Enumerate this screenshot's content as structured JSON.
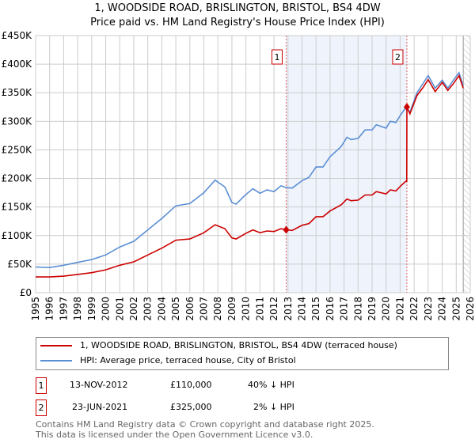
{
  "chart_data": {
    "type": "line",
    "title": "1, WOODSIDE ROAD, BRISLINGTON, BRISTOL, BS4 4DW",
    "subtitle": "Price paid vs. HM Land Registry's House Price Index (HPI)",
    "xlim": [
      1995,
      2026
    ],
    "ylim": [
      0,
      450000
    ],
    "yticks": [
      {
        "v": 0,
        "label": "£0"
      },
      {
        "v": 50000,
        "label": "£50K"
      },
      {
        "v": 100000,
        "label": "£100K"
      },
      {
        "v": 150000,
        "label": "£150K"
      },
      {
        "v": 200000,
        "label": "£200K"
      },
      {
        "v": 250000,
        "label": "£250K"
      },
      {
        "v": 300000,
        "label": "£300K"
      },
      {
        "v": 350000,
        "label": "£350K"
      },
      {
        "v": 400000,
        "label": "£400K"
      },
      {
        "v": 450000,
        "label": "£450K"
      }
    ],
    "xticks": [
      "1995",
      "1996",
      "1997",
      "1998",
      "1999",
      "2000",
      "2001",
      "2002",
      "2003",
      "2004",
      "2005",
      "2006",
      "2007",
      "2008",
      "2009",
      "2010",
      "2011",
      "2012",
      "2013",
      "2014",
      "2015",
      "2016",
      "2017",
      "2018",
      "2019",
      "2020",
      "2021",
      "2022",
      "2023",
      "2024",
      "2025",
      "2026"
    ],
    "grid": true,
    "series": [
      {
        "name": "1, WOODSIDE ROAD, BRISLINGTON, BRISTOL, BS4 4DW (terraced house)",
        "color": "#cc0000",
        "x": [
          1995,
          1996,
          1997,
          1998,
          1999,
          2000,
          2001,
          2002,
          2003,
          2004,
          2005,
          2006,
          2007,
          2007.8,
          2008.5,
          2009,
          2009.3,
          2010,
          2010.5,
          2011,
          2011.5,
          2012,
          2012.5,
          2012.87,
          2013.3,
          2014,
          2014.5,
          2015,
          2015.5,
          2016,
          2016.8,
          2017.2,
          2017.5,
          2018,
          2018.5,
          2019,
          2019.3,
          2020,
          2020.3,
          2020.7,
          2021,
          2021.4,
          2021.47,
          2021.48,
          2021.7,
          2022.2,
          2022.6,
          2023,
          2023.5,
          2024,
          2024.4,
          2024.8,
          2025.2,
          2025.5
        ],
        "values": [
          27500,
          27500,
          29000,
          32000,
          35000,
          40000,
          48000,
          54000,
          66000,
          78000,
          92000,
          94000,
          105000,
          119000,
          112000,
          96000,
          94000,
          104000,
          110000,
          105000,
          108000,
          107000,
          112000,
          110000,
          109000,
          118000,
          121000,
          133000,
          133000,
          143000,
          154000,
          164000,
          161000,
          162000,
          171000,
          171000,
          177000,
          173000,
          180000,
          178000,
          186000,
          195000,
          195000,
          325000,
          313000,
          345000,
          358000,
          373000,
          352000,
          368000,
          354000,
          366000,
          380000,
          358000
        ]
      },
      {
        "name": "HPI: Average price, terraced house, City of Bristol",
        "color": "#5b8fd4",
        "x": [
          1995,
          1996,
          1997,
          1998,
          1999,
          2000,
          2001,
          2002,
          2003,
          2004,
          2005,
          2006,
          2007,
          2007.8,
          2008.5,
          2009,
          2009.3,
          2010,
          2010.5,
          2011,
          2011.5,
          2012,
          2012.5,
          2012.87,
          2013.3,
          2014,
          2014.5,
          2015,
          2015.5,
          2016,
          2016.8,
          2017.2,
          2017.5,
          2018,
          2018.5,
          2019,
          2019.3,
          2020,
          2020.3,
          2020.7,
          2021,
          2021.4,
          2021.7,
          2022.2,
          2022.6,
          2023,
          2023.5,
          2024,
          2024.4,
          2024.8,
          2025.2,
          2025.5
        ],
        "values": [
          45000,
          44000,
          48000,
          53000,
          58000,
          66000,
          80000,
          90000,
          110000,
          130000,
          152000,
          156000,
          175000,
          197000,
          185000,
          158000,
          155000,
          172000,
          182000,
          174000,
          180000,
          177000,
          187000,
          184000,
          183000,
          196000,
          202000,
          220000,
          220000,
          238000,
          256000,
          272000,
          268000,
          270000,
          285000,
          285000,
          294000,
          288000,
          300000,
          298000,
          310000,
          324000,
          316000,
          350000,
          365000,
          380000,
          358000,
          372000,
          358000,
          372000,
          385000,
          362000
        ]
      }
    ],
    "sales": [
      {
        "label": "1",
        "x": 2012.87,
        "value": 110000
      },
      {
        "label": "2",
        "x": 2021.48,
        "value": 325000
      }
    ],
    "forecast_hatch_from": 2025.5
  },
  "legend": {
    "red": "1, WOODSIDE ROAD, BRISLINGTON, BRISTOL, BS4 4DW (terraced house)",
    "blue": "HPI: Average price, terraced house, City of Bristol"
  },
  "transactions": [
    {
      "num": "1",
      "date": "13-NOV-2012",
      "price": "£110,000",
      "hpi": "40% ↓ HPI"
    },
    {
      "num": "2",
      "date": "23-JUN-2021",
      "price": "£325,000",
      "hpi": "2% ↓ HPI"
    }
  ],
  "footer": {
    "line1": "Contains HM Land Registry data © Crown copyright and database right 2025.",
    "line2": "This data is licensed under the Open Government Licence v3.0."
  }
}
